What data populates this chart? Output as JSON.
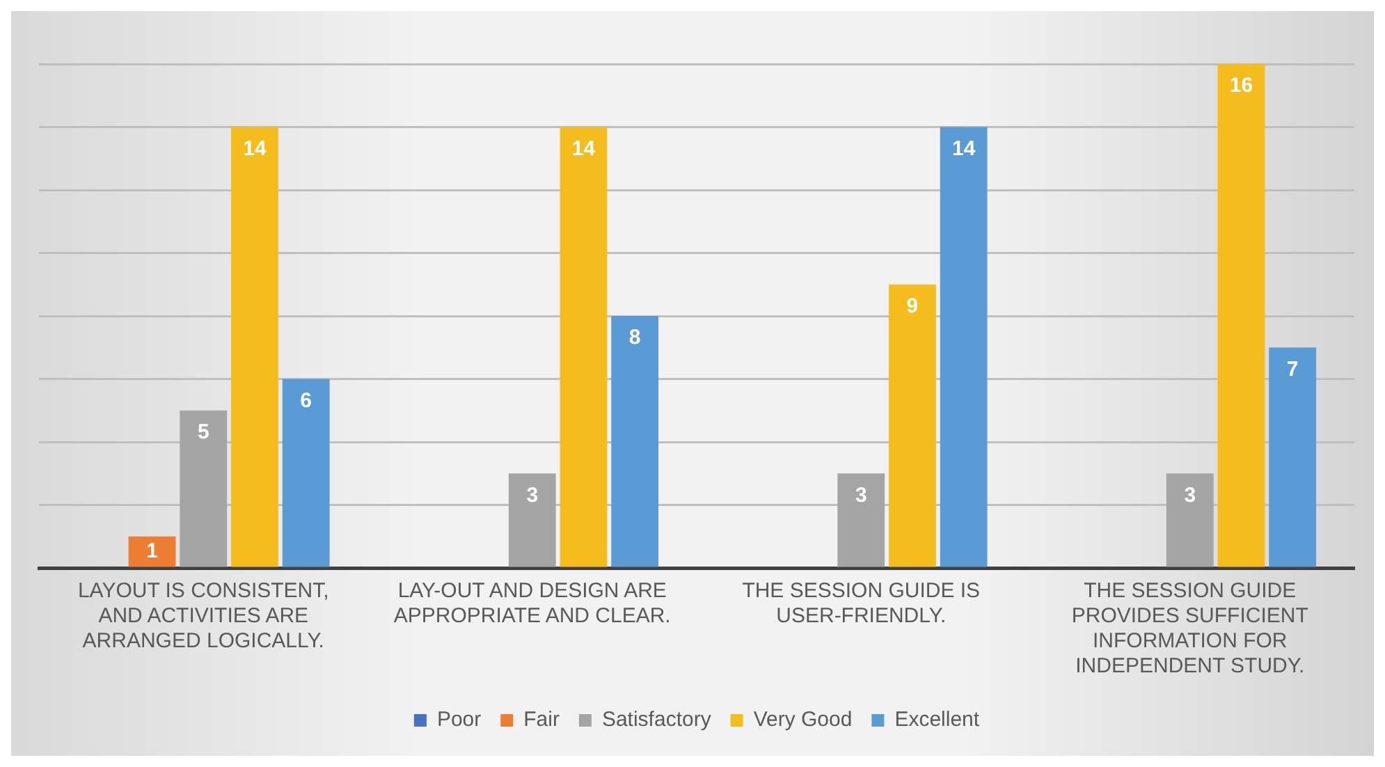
{
  "chart_data": {
    "type": "bar",
    "categories": [
      "LAYOUT IS CONSISTENT, AND ACTIVITIES ARE ARRANGED LOGICALLY.",
      "LAY-OUT AND DESIGN ARE APPROPRIATE AND CLEAR.",
      "THE SESSION GUIDE IS USER-FRIENDLY.",
      "THE SESSION GUIDE PROVIDES SUFFICIENT INFORMATION FOR INDEPENDENT STUDY."
    ],
    "series": [
      {
        "name": "Poor",
        "color": "#4472c4",
        "values": [
          null,
          null,
          null,
          null
        ]
      },
      {
        "name": "Fair",
        "color": "#ed7d31",
        "values": [
          1,
          null,
          null,
          null
        ]
      },
      {
        "name": "Satisfactory",
        "color": "#a5a5a5",
        "values": [
          5,
          3,
          3,
          3
        ]
      },
      {
        "name": "Very Good",
        "color": "#f5bc1e",
        "values": [
          14,
          14,
          9,
          16
        ]
      },
      {
        "name": "Excellent",
        "color": "#5b9bd5",
        "values": [
          6,
          8,
          14,
          7
        ]
      }
    ],
    "ylim": [
      0,
      16
    ],
    "yticks": [
      0,
      2,
      4,
      6,
      8,
      10,
      12,
      14,
      16
    ],
    "tick_labels": "x",
    "grid": "y",
    "legend": "bottom",
    "data_labels": true
  }
}
